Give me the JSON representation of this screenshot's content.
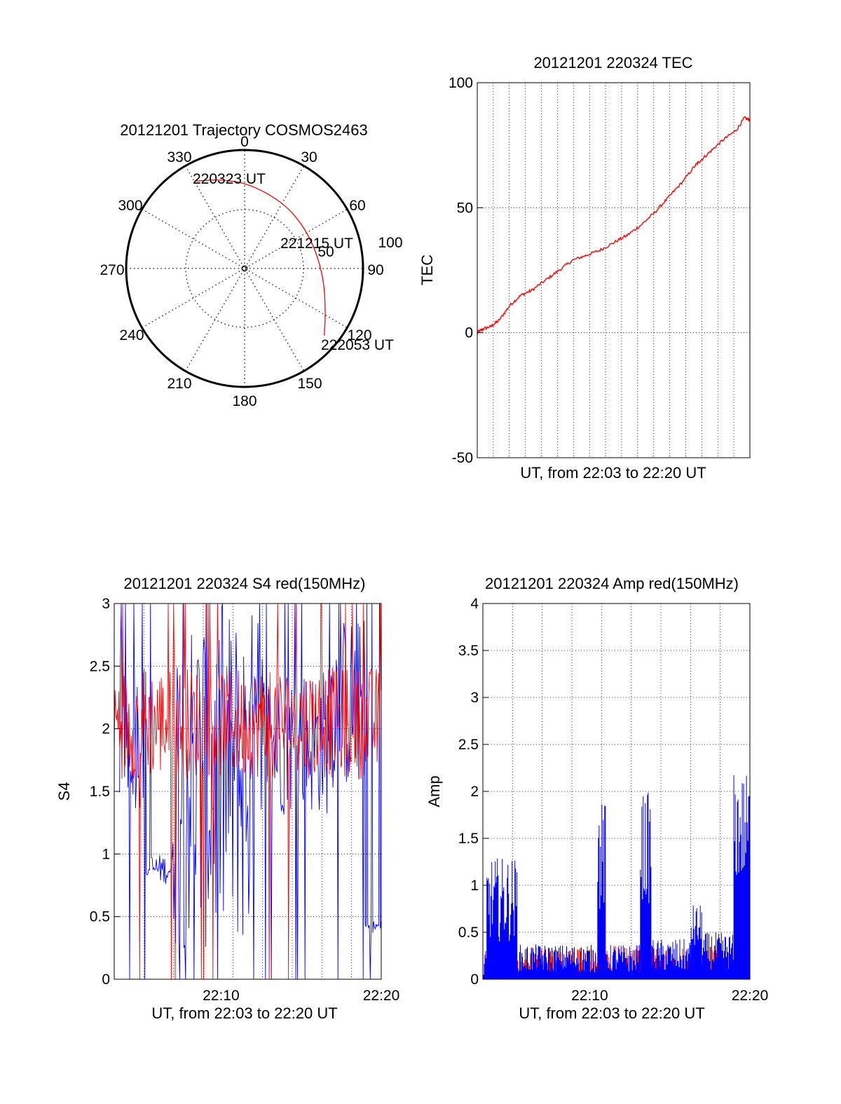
{
  "colors": {
    "red": "#ff0000",
    "blue": "#0000ff",
    "grid": "#000000"
  },
  "chart_data": [
    {
      "type": "polar",
      "title": "20121201 Trajectory COSMOS2463",
      "azimuth_labels": [
        "0",
        "30",
        "60",
        "90",
        "120",
        "150",
        "180",
        "210",
        "240",
        "270",
        "300",
        "330"
      ],
      "radial_labels": [
        "50",
        "100"
      ],
      "series": [
        {
          "color": "red",
          "points": [
            {
              "azimuth": 331,
              "elevation": 14
            },
            {
              "azimuth": 345,
              "elevation": 20
            },
            {
              "azimuth": 0,
              "elevation": 25
            },
            {
              "azimuth": 16,
              "elevation": 30
            },
            {
              "azimuth": 34,
              "elevation": 33
            },
            {
              "azimuth": 52,
              "elevation": 35
            },
            {
              "azimuth": 70,
              "elevation": 35
            },
            {
              "azimuth": 86,
              "elevation": 33
            },
            {
              "azimuth": 100,
              "elevation": 29
            },
            {
              "azimuth": 112,
              "elevation": 24
            },
            {
              "azimuth": 123,
              "elevation": 17
            },
            {
              "azimuth": 130,
              "elevation": 11
            }
          ]
        }
      ],
      "annotations": [
        "220323 UT",
        "221215 UT",
        "222053 UT"
      ]
    },
    {
      "type": "line",
      "title": "20121201 220324 TEC",
      "ylabel": "TEC",
      "xlabel": "UT, from 22:03 to 22:20 UT",
      "ylim": [
        -50,
        100
      ],
      "yticks": [
        "-50",
        "0",
        "50",
        "100"
      ],
      "xlim": [
        0,
        1
      ],
      "grid": true,
      "series": [
        {
          "color": "red",
          "points": [
            [
              0.0,
              0
            ],
            [
              0.02,
              1.5
            ],
            [
              0.05,
              2.5
            ],
            [
              0.08,
              5
            ],
            [
              0.12,
              11
            ],
            [
              0.16,
              15
            ],
            [
              0.2,
              17
            ],
            [
              0.25,
              21
            ],
            [
              0.3,
              25
            ],
            [
              0.35,
              29
            ],
            [
              0.4,
              31
            ],
            [
              0.45,
              33
            ],
            [
              0.5,
              36
            ],
            [
              0.55,
              39
            ],
            [
              0.6,
              43
            ],
            [
              0.65,
              48
            ],
            [
              0.7,
              54
            ],
            [
              0.75,
              60
            ],
            [
              0.8,
              67
            ],
            [
              0.82,
              69
            ],
            [
              0.86,
              73
            ],
            [
              0.9,
              77
            ],
            [
              0.95,
              81
            ],
            [
              0.98,
              86
            ],
            [
              1.0,
              85
            ]
          ]
        }
      ]
    },
    {
      "type": "line",
      "title": "20121201 220324 S4 red(150MHz)",
      "ylabel": "S4",
      "xlabel": "UT, from 22:03 to 22:20 UT",
      "ylim": [
        0,
        3
      ],
      "yticks": [
        "0",
        "0.5",
        "1",
        "1.5",
        "2",
        "2.5",
        "3"
      ],
      "xticks": [
        {
          "label": "22:10",
          "value": 0.4
        },
        {
          "label": "22:20",
          "value": 1.0
        }
      ],
      "grid": true,
      "series": [
        {
          "color": "blue",
          "segments": [
            {
              "x0": 0.02,
              "x1": 0.12,
              "base": 1.95,
              "spread": 0.6
            },
            {
              "x0": 0.12,
              "x1": 0.22,
              "base": 0.88,
              "spread": 0.12
            },
            {
              "x0": 0.22,
              "x1": 0.56,
              "base": 1.6,
              "spread": 1.4
            },
            {
              "x0": 0.56,
              "x1": 0.8,
              "base": 1.9,
              "spread": 0.6
            },
            {
              "x0": 0.8,
              "x1": 0.94,
              "base": 2.2,
              "spread": 0.7
            },
            {
              "x0": 0.94,
              "x1": 1.0,
              "base": 0.42,
              "spread": 0.05
            }
          ]
        },
        {
          "color": "red",
          "segments": [
            {
              "x0": 0.0,
              "x1": 1.0,
              "base": 2.05,
              "spread": 0.45
            }
          ]
        }
      ]
    },
    {
      "type": "bar",
      "title": "20121201 220324 Amp red(150MHz)",
      "ylabel": "Amp",
      "xlabel": "UT, from 22:03 to 22:20 UT",
      "ylim": [
        0,
        4
      ],
      "yticks": [
        "0",
        "0.5",
        "1",
        "1.5",
        "2",
        "2.5",
        "3",
        "3.5",
        "4"
      ],
      "xticks": [
        {
          "label": "22:10",
          "value": 0.4
        },
        {
          "label": "22:20",
          "value": 1.0
        }
      ],
      "grid": true,
      "series": [
        {
          "color": "red",
          "segments": [
            {
              "x0": 0.0,
              "x1": 1.0,
              "base": 0.18,
              "spread": 0.18
            }
          ]
        },
        {
          "color": "blue",
          "segments": [
            {
              "x0": 0.0,
              "x1": 0.015,
              "base": 0.15,
              "spread": 0.15
            },
            {
              "x0": 0.015,
              "x1": 0.13,
              "base": 0.85,
              "spread": 0.45
            },
            {
              "x0": 0.13,
              "x1": 0.43,
              "base": 0.22,
              "spread": 0.15
            },
            {
              "x0": 0.43,
              "x1": 0.46,
              "base": 1.3,
              "spread": 0.6
            },
            {
              "x0": 0.46,
              "x1": 0.59,
              "base": 0.22,
              "spread": 0.15
            },
            {
              "x0": 0.59,
              "x1": 0.63,
              "base": 1.4,
              "spread": 0.6
            },
            {
              "x0": 0.63,
              "x1": 0.78,
              "base": 0.25,
              "spread": 0.18
            },
            {
              "x0": 0.78,
              "x1": 0.82,
              "base": 0.55,
              "spread": 0.25
            },
            {
              "x0": 0.82,
              "x1": 0.94,
              "base": 0.3,
              "spread": 0.2
            },
            {
              "x0": 0.94,
              "x1": 1.0,
              "base": 1.6,
              "spread": 0.6
            }
          ]
        }
      ]
    }
  ]
}
